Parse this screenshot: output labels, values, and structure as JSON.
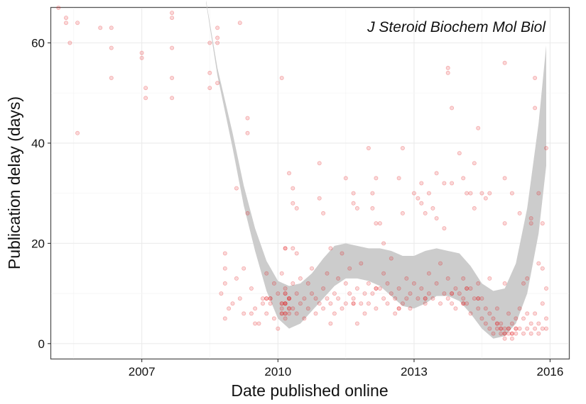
{
  "chart_data": {
    "type": "scatter",
    "annotation": "J Steroid Biochem Mol Biol",
    "xlabel": "Date published online",
    "ylabel": "Publication delay (days)",
    "x_ticks": [
      "2007",
      "2010",
      "2013",
      "2016"
    ],
    "y_ticks": [
      "0",
      "20",
      "40",
      "60"
    ],
    "xlim": [
      "2005-01-01",
      "2016-06-01"
    ],
    "ylim": [
      -3,
      67
    ],
    "grid": true,
    "legend": "none",
    "point_color": "#e31a1c",
    "band_color": "#cccccc",
    "points": [
      {
        "x": "2005-03-01",
        "y": 67
      },
      {
        "x": "2005-05-01",
        "y": 65
      },
      {
        "x": "2005-05-01",
        "y": 64
      },
      {
        "x": "2005-06-01",
        "y": 60
      },
      {
        "x": "2005-08-01",
        "y": 64
      },
      {
        "x": "2005-08-01",
        "y": 42
      },
      {
        "x": "2006-02-01",
        "y": 63
      },
      {
        "x": "2006-05-01",
        "y": 63
      },
      {
        "x": "2006-05-01",
        "y": 59
      },
      {
        "x": "2006-05-01",
        "y": 53
      },
      {
        "x": "2007-01-01",
        "y": 58
      },
      {
        "x": "2007-01-01",
        "y": 57
      },
      {
        "x": "2007-02-01",
        "y": 51
      },
      {
        "x": "2007-02-01",
        "y": 49
      },
      {
        "x": "2007-09-01",
        "y": 66
      },
      {
        "x": "2007-09-01",
        "y": 65
      },
      {
        "x": "2007-09-01",
        "y": 59
      },
      {
        "x": "2007-09-01",
        "y": 53
      },
      {
        "x": "2007-09-01",
        "y": 49
      },
      {
        "x": "2008-07-01",
        "y": 60
      },
      {
        "x": "2008-07-01",
        "y": 54
      },
      {
        "x": "2008-07-01",
        "y": 51
      },
      {
        "x": "2008-09-01",
        "y": 63
      },
      {
        "x": "2008-09-01",
        "y": 61
      },
      {
        "x": "2008-09-01",
        "y": 60
      },
      {
        "x": "2008-09-01",
        "y": 52
      },
      {
        "x": "2008-10-01",
        "y": 10
      },
      {
        "x": "2008-11-01",
        "y": 18
      },
      {
        "x": "2008-11-01",
        "y": 15
      },
      {
        "x": "2008-11-01",
        "y": 12
      },
      {
        "x": "2008-11-01",
        "y": 5
      },
      {
        "x": "2008-12-01",
        "y": 7
      },
      {
        "x": "2009-01-01",
        "y": 8
      },
      {
        "x": "2009-02-01",
        "y": 31
      },
      {
        "x": "2009-03-01",
        "y": 64
      },
      {
        "x": "2009-05-01",
        "y": 45
      },
      {
        "x": "2009-05-01",
        "y": 42
      },
      {
        "x": "2009-05-01",
        "y": 26
      },
      {
        "x": "2009-06-01",
        "y": 6
      },
      {
        "x": "2009-07-01",
        "y": 4
      },
      {
        "x": "2009-09-01",
        "y": 8
      },
      {
        "x": "2010-02-01",
        "y": 53
      },
      {
        "x": "2010-03-01",
        "y": 8
      },
      {
        "x": "2010-04-01",
        "y": 34
      },
      {
        "x": "2010-05-01",
        "y": 31
      },
      {
        "x": "2010-05-01",
        "y": 28
      },
      {
        "x": "2010-05-01",
        "y": 19
      },
      {
        "x": "2010-06-01",
        "y": 27
      },
      {
        "x": "2010-06-01",
        "y": 18
      },
      {
        "x": "2010-09-01",
        "y": 12
      },
      {
        "x": "2010-12-01",
        "y": 36
      },
      {
        "x": "2010-12-01",
        "y": 29
      },
      {
        "x": "2011-01-01",
        "y": 26
      },
      {
        "x": "2011-03-01",
        "y": 19
      },
      {
        "x": "2011-03-01",
        "y": 4
      },
      {
        "x": "2011-06-01",
        "y": 18
      },
      {
        "x": "2011-07-01",
        "y": 33
      },
      {
        "x": "2011-09-01",
        "y": 30
      },
      {
        "x": "2011-09-01",
        "y": 28
      },
      {
        "x": "2011-10-01",
        "y": 27
      },
      {
        "x": "2011-10-01",
        "y": 4
      },
      {
        "x": "2012-01-01",
        "y": 39
      },
      {
        "x": "2012-02-01",
        "y": 30
      },
      {
        "x": "2012-02-01",
        "y": 27
      },
      {
        "x": "2012-03-01",
        "y": 33
      },
      {
        "x": "2012-03-01",
        "y": 24
      },
      {
        "x": "2012-04-01",
        "y": 24
      },
      {
        "x": "2012-05-01",
        "y": 20
      },
      {
        "x": "2012-09-01",
        "y": 33
      },
      {
        "x": "2012-10-01",
        "y": 39
      },
      {
        "x": "2012-10-01",
        "y": 26
      },
      {
        "x": "2013-01-01",
        "y": 30
      },
      {
        "x": "2013-02-01",
        "y": 29
      },
      {
        "x": "2013-03-01",
        "y": 32
      },
      {
        "x": "2013-03-01",
        "y": 28
      },
      {
        "x": "2013-04-01",
        "y": 26
      },
      {
        "x": "2013-05-01",
        "y": 30
      },
      {
        "x": "2013-06-01",
        "y": 27
      },
      {
        "x": "2013-07-01",
        "y": 34
      },
      {
        "x": "2013-07-01",
        "y": 25
      },
      {
        "x": "2013-09-01",
        "y": 32
      },
      {
        "x": "2013-09-01",
        "y": 23
      },
      {
        "x": "2013-10-01",
        "y": 55
      },
      {
        "x": "2013-10-01",
        "y": 54
      },
      {
        "x": "2013-11-01",
        "y": 47
      },
      {
        "x": "2013-11-01",
        "y": 32
      },
      {
        "x": "2014-01-01",
        "y": 38
      },
      {
        "x": "2014-02-01",
        "y": 33
      },
      {
        "x": "2014-03-01",
        "y": 30
      },
      {
        "x": "2014-04-01",
        "y": 30
      },
      {
        "x": "2014-05-01",
        "y": 36
      },
      {
        "x": "2014-05-01",
        "y": 27
      },
      {
        "x": "2014-06-01",
        "y": 43
      },
      {
        "x": "2014-07-01",
        "y": 30
      },
      {
        "x": "2014-08-01",
        "y": 29
      },
      {
        "x": "2014-09-01",
        "y": 30
      },
      {
        "x": "2014-09-01",
        "y": 13
      },
      {
        "x": "2015-01-01",
        "y": 56
      },
      {
        "x": "2015-01-01",
        "y": 33
      },
      {
        "x": "2015-01-01",
        "y": 24
      },
      {
        "x": "2015-01-01",
        "y": 12
      },
      {
        "x": "2015-03-01",
        "y": 30
      },
      {
        "x": "2015-05-01",
        "y": 26
      },
      {
        "x": "2015-06-01",
        "y": 12
      },
      {
        "x": "2015-07-01",
        "y": 13
      },
      {
        "x": "2015-08-01",
        "y": 25
      },
      {
        "x": "2015-08-01",
        "y": 24
      },
      {
        "x": "2015-09-01",
        "y": 53
      },
      {
        "x": "2015-09-01",
        "y": 47
      },
      {
        "x": "2015-10-01",
        "y": 30
      },
      {
        "x": "2015-10-01",
        "y": 16
      },
      {
        "x": "2015-11-01",
        "y": 24
      },
      {
        "x": "2015-11-01",
        "y": 15
      },
      {
        "x": "2015-12-01",
        "y": 39
      },
      {
        "x": "2015-12-01",
        "y": 11
      },
      {
        "x": "2009-08-01",
        "y": 4
      },
      {
        "x": "2009-04-01",
        "y": 6
      },
      {
        "x": "2009-04-01",
        "y": 15
      },
      {
        "x": "2009-02-01",
        "y": 13
      },
      {
        "x": "2009-03-01",
        "y": 9
      },
      {
        "x": "2009-06-01",
        "y": 11
      },
      {
        "x": "2009-07-01",
        "y": 7
      },
      {
        "x": "2009-09-01",
        "y": 9
      },
      {
        "x": "2009-10-01",
        "y": 6
      },
      {
        "x": "2009-10-01",
        "y": 14
      },
      {
        "x": "2009-11-01",
        "y": 8
      },
      {
        "x": "2009-12-01",
        "y": 5
      },
      {
        "x": "2009-12-01",
        "y": 12
      },
      {
        "x": "2010-01-01",
        "y": 3
      },
      {
        "x": "2010-01-01",
        "y": 10
      },
      {
        "x": "2010-02-01",
        "y": 7
      },
      {
        "x": "2010-02-01",
        "y": 14
      },
      {
        "x": "2010-03-01",
        "y": 5
      },
      {
        "x": "2010-03-01",
        "y": 11
      },
      {
        "x": "2010-04-01",
        "y": 6
      },
      {
        "x": "2010-04-01",
        "y": 9
      },
      {
        "x": "2010-05-01",
        "y": 7
      },
      {
        "x": "2010-05-01",
        "y": 12
      },
      {
        "x": "2010-06-01",
        "y": 6
      },
      {
        "x": "2010-06-01",
        "y": 10
      },
      {
        "x": "2010-07-01",
        "y": 8
      },
      {
        "x": "2010-07-01",
        "y": 13
      },
      {
        "x": "2010-08-01",
        "y": 5
      },
      {
        "x": "2010-08-01",
        "y": 9
      },
      {
        "x": "2010-09-01",
        "y": 7
      },
      {
        "x": "2010-10-01",
        "y": 10
      },
      {
        "x": "2010-10-01",
        "y": 15
      },
      {
        "x": "2010-11-01",
        "y": 6
      },
      {
        "x": "2010-11-01",
        "y": 9
      },
      {
        "x": "2010-12-01",
        "y": 8
      },
      {
        "x": "2011-01-01",
        "y": 11
      },
      {
        "x": "2011-01-01",
        "y": 7
      },
      {
        "x": "2011-02-01",
        "y": 9
      },
      {
        "x": "2011-02-01",
        "y": 14
      },
      {
        "x": "2011-03-01",
        "y": 8
      },
      {
        "x": "2011-04-01",
        "y": 10
      },
      {
        "x": "2011-04-01",
        "y": 6
      },
      {
        "x": "2011-05-01",
        "y": 13
      },
      {
        "x": "2011-05-01",
        "y": 9
      },
      {
        "x": "2011-06-01",
        "y": 7
      },
      {
        "x": "2011-07-01",
        "y": 12
      },
      {
        "x": "2011-07-01",
        "y": 8
      },
      {
        "x": "2011-08-01",
        "y": 10
      },
      {
        "x": "2011-08-01",
        "y": 15
      },
      {
        "x": "2011-09-01",
        "y": 9
      },
      {
        "x": "2011-10-01",
        "y": 11
      },
      {
        "x": "2011-11-01",
        "y": 8
      },
      {
        "x": "2011-11-01",
        "y": 16
      },
      {
        "x": "2011-12-01",
        "y": 10
      },
      {
        "x": "2011-12-01",
        "y": 6
      },
      {
        "x": "2012-01-01",
        "y": 12
      },
      {
        "x": "2012-01-01",
        "y": 8
      },
      {
        "x": "2012-02-01",
        "y": 10
      },
      {
        "x": "2012-03-01",
        "y": 7
      },
      {
        "x": "2012-04-01",
        "y": 11
      },
      {
        "x": "2012-05-01",
        "y": 9
      },
      {
        "x": "2012-05-01",
        "y": 14
      },
      {
        "x": "2012-06-01",
        "y": 8
      },
      {
        "x": "2012-06-01",
        "y": 12
      },
      {
        "x": "2012-07-01",
        "y": 10
      },
      {
        "x": "2012-07-01",
        "y": 17
      },
      {
        "x": "2012-08-01",
        "y": 9
      },
      {
        "x": "2012-08-01",
        "y": 6
      },
      {
        "x": "2012-09-01",
        "y": 11
      },
      {
        "x": "2012-10-01",
        "y": 8
      },
      {
        "x": "2012-11-01",
        "y": 13
      },
      {
        "x": "2012-11-01",
        "y": 9
      },
      {
        "x": "2012-12-01",
        "y": 10
      },
      {
        "x": "2012-12-01",
        "y": 7
      },
      {
        "x": "2013-01-01",
        "y": 12
      },
      {
        "x": "2013-02-01",
        "y": 9
      },
      {
        "x": "2013-03-01",
        "y": 11
      },
      {
        "x": "2013-04-01",
        "y": 8
      },
      {
        "x": "2013-05-01",
        "y": 14
      },
      {
        "x": "2013-05-01",
        "y": 10
      },
      {
        "x": "2013-06-01",
        "y": 9
      },
      {
        "x": "2013-07-01",
        "y": 12
      },
      {
        "x": "2013-08-01",
        "y": 8
      },
      {
        "x": "2013-08-01",
        "y": 16
      },
      {
        "x": "2013-09-01",
        "y": 10
      },
      {
        "x": "2013-10-01",
        "y": 9
      },
      {
        "x": "2013-10-01",
        "y": 13
      },
      {
        "x": "2013-11-01",
        "y": 8
      },
      {
        "x": "2013-12-01",
        "y": 11
      },
      {
        "x": "2013-12-01",
        "y": 7
      },
      {
        "x": "2014-01-01",
        "y": 10
      },
      {
        "x": "2014-02-01",
        "y": 9
      },
      {
        "x": "2014-02-01",
        "y": 13
      },
      {
        "x": "2014-03-01",
        "y": 8
      },
      {
        "x": "2014-04-01",
        "y": 11
      },
      {
        "x": "2014-04-01",
        "y": 6
      },
      {
        "x": "2014-05-01",
        "y": 9
      },
      {
        "x": "2014-06-01",
        "y": 7
      },
      {
        "x": "2014-06-01",
        "y": 12
      },
      {
        "x": "2014-07-01",
        "y": 5
      },
      {
        "x": "2014-07-01",
        "y": 9
      },
      {
        "x": "2014-08-01",
        "y": 4
      },
      {
        "x": "2014-08-01",
        "y": 7
      },
      {
        "x": "2014-09-01",
        "y": 3
      },
      {
        "x": "2014-09-01",
        "y": 6
      },
      {
        "x": "2014-10-01",
        "y": 2
      },
      {
        "x": "2014-10-01",
        "y": 5
      },
      {
        "x": "2014-11-01",
        "y": 3
      },
      {
        "x": "2014-11-01",
        "y": 7
      },
      {
        "x": "2014-12-01",
        "y": 2
      },
      {
        "x": "2014-12-01",
        "y": 4
      },
      {
        "x": "2015-01-01",
        "y": 1
      },
      {
        "x": "2015-01-01",
        "y": 3
      },
      {
        "x": "2015-02-01",
        "y": 2
      },
      {
        "x": "2015-02-01",
        "y": 6
      },
      {
        "x": "2015-03-01",
        "y": 1
      },
      {
        "x": "2015-03-01",
        "y": 4
      },
      {
        "x": "2015-04-01",
        "y": 2
      },
      {
        "x": "2015-04-01",
        "y": 5
      },
      {
        "x": "2015-05-01",
        "y": 3
      },
      {
        "x": "2015-05-01",
        "y": 7
      },
      {
        "x": "2015-06-01",
        "y": 2
      },
      {
        "x": "2015-06-01",
        "y": 5
      },
      {
        "x": "2015-07-01",
        "y": 3
      },
      {
        "x": "2015-07-01",
        "y": 6
      },
      {
        "x": "2015-08-01",
        "y": 2
      },
      {
        "x": "2015-08-01",
        "y": 4
      },
      {
        "x": "2015-09-01",
        "y": 3
      },
      {
        "x": "2015-09-01",
        "y": 6
      },
      {
        "x": "2015-10-01",
        "y": 2
      },
      {
        "x": "2015-10-01",
        "y": 4
      },
      {
        "x": "2015-11-01",
        "y": 3
      },
      {
        "x": "2015-11-01",
        "y": 8
      },
      {
        "x": "2015-12-01",
        "y": 3
      },
      {
        "x": "2015-12-01",
        "y": 5
      }
    ],
    "dense_points": [
      {
        "x": "2010-03-01",
        "y": 6
      },
      {
        "x": "2010-03-01",
        "y": 8
      },
      {
        "x": "2010-03-01",
        "y": 10
      },
      {
        "x": "2010-03-01",
        "y": 19
      },
      {
        "x": "2010-04-01",
        "y": 7
      },
      {
        "x": "2010-04-01",
        "y": 9
      },
      {
        "x": "2010-02-01",
        "y": 6
      },
      {
        "x": "2010-02-01",
        "y": 8
      },
      {
        "x": "2011-09-01",
        "y": 8
      },
      {
        "x": "2012-03-01",
        "y": 11
      },
      {
        "x": "2012-09-01",
        "y": 7
      },
      {
        "x": "2013-04-01",
        "y": 9
      },
      {
        "x": "2013-11-01",
        "y": 10
      },
      {
        "x": "2014-02-01",
        "y": 8
      },
      {
        "x": "2014-03-01",
        "y": 11
      },
      {
        "x": "2014-06-01",
        "y": 9
      },
      {
        "x": "2014-11-01",
        "y": 4
      },
      {
        "x": "2014-12-01",
        "y": 3
      },
      {
        "x": "2015-01-01",
        "y": 2
      },
      {
        "x": "2015-02-01",
        "y": 3
      },
      {
        "x": "2015-03-01",
        "y": 2
      },
      {
        "x": "2015-04-01",
        "y": 3
      },
      {
        "x": "2009-10-01",
        "y": 9
      },
      {
        "x": "2009-11-01",
        "y": 9
      }
    ],
    "smooth_band": {
      "x": [
        "2008-06-01",
        "2008-09-01",
        "2009-01-01",
        "2009-04-01",
        "2009-07-01",
        "2009-10-01",
        "2010-01-01",
        "2010-04-01",
        "2010-07-01",
        "2010-10-01",
        "2011-01-01",
        "2011-04-01",
        "2011-07-01",
        "2011-10-01",
        "2012-01-01",
        "2012-04-01",
        "2012-07-01",
        "2012-10-01",
        "2013-01-01",
        "2013-04-01",
        "2013-07-01",
        "2013-10-01",
        "2014-01-01",
        "2014-04-01",
        "2014-07-01",
        "2014-10-01",
        "2015-01-01",
        "2015-04-01",
        "2015-07-01",
        "2015-10-01",
        "2015-12-01"
      ],
      "upper": [
        68.5,
        55.0,
        42.0,
        31.5,
        23.0,
        16.5,
        12.5,
        11.5,
        12.0,
        14.0,
        17.0,
        19.5,
        20.0,
        19.5,
        19.0,
        19.0,
        18.5,
        17.5,
        17.5,
        18.5,
        19.0,
        18.5,
        18.0,
        15.5,
        12.0,
        10.5,
        11.0,
        16.0,
        27.0,
        44.0,
        59.5
      ],
      "lower": [
        68.0,
        53.5,
        39.0,
        27.5,
        18.5,
        10.5,
        5.0,
        3.0,
        4.0,
        6.5,
        9.0,
        11.5,
        13.0,
        13.0,
        12.5,
        11.5,
        9.5,
        7.5,
        7.0,
        8.0,
        9.5,
        9.5,
        8.5,
        6.0,
        3.0,
        1.0,
        1.5,
        4.0,
        10.0,
        22.0,
        35.5
      ]
    }
  }
}
